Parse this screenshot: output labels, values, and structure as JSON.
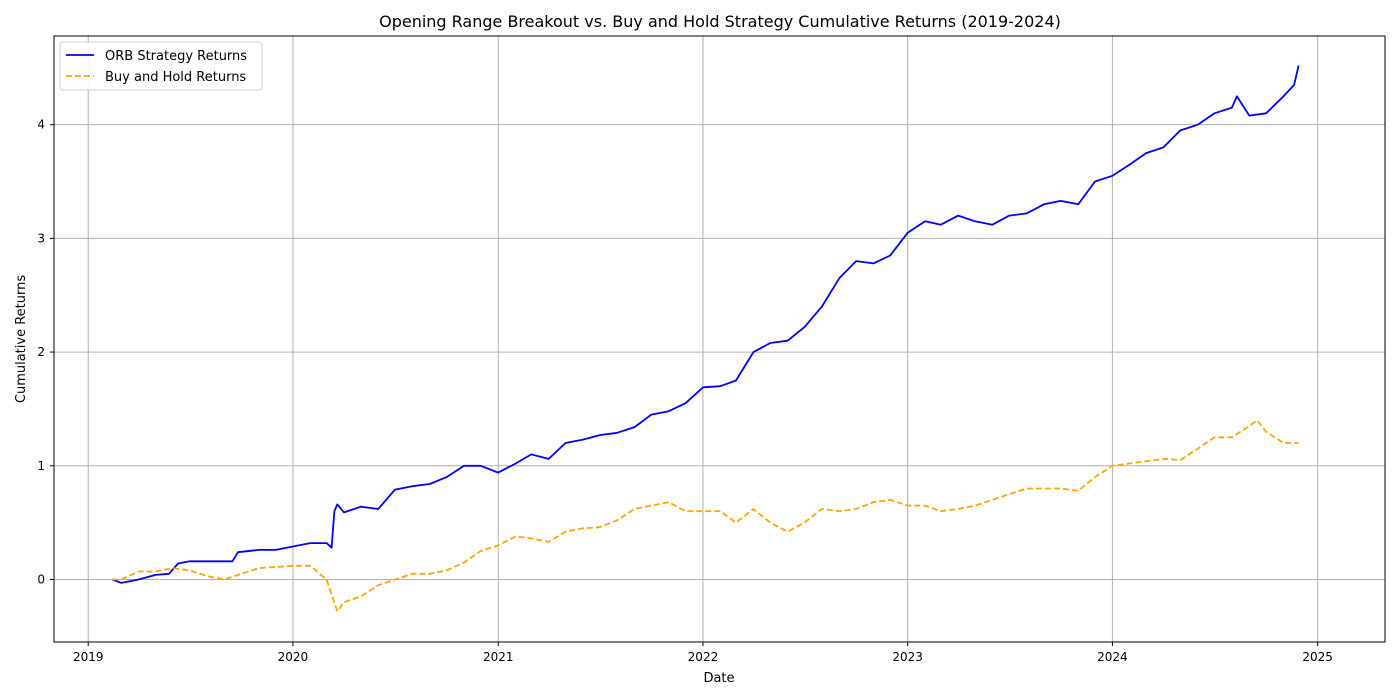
{
  "chart_data": {
    "type": "line",
    "title": "Opening Range Breakout vs. Buy and Hold Strategy Cumulative Returns (2019-2024)",
    "xlabel": "Date",
    "ylabel": "Cumulative Returns",
    "xlim": [
      "2018-11-01",
      "2025-05-01"
    ],
    "ylim": [
      -0.55,
      4.78
    ],
    "x_ticks": [
      "2019",
      "2020",
      "2021",
      "2022",
      "2023",
      "2024",
      "2025"
    ],
    "y_ticks": [
      "0",
      "1",
      "2",
      "3",
      "4"
    ],
    "grid": true,
    "legend_position": "top-left",
    "series": [
      {
        "name": "ORB Strategy Returns",
        "color": "#0000ff",
        "style": "solid",
        "points": [
          [
            "2019-02-13",
            0.0
          ],
          [
            "2019-03-01",
            -0.03
          ],
          [
            "2019-04-01",
            0.0
          ],
          [
            "2019-05-01",
            0.04
          ],
          [
            "2019-05-25",
            0.05
          ],
          [
            "2019-06-10",
            0.14
          ],
          [
            "2019-07-01",
            0.16
          ],
          [
            "2019-08-01",
            0.16
          ],
          [
            "2019-09-01",
            0.16
          ],
          [
            "2019-09-15",
            0.16
          ],
          [
            "2019-09-25",
            0.24
          ],
          [
            "2019-11-01",
            0.26
          ],
          [
            "2019-12-01",
            0.26
          ],
          [
            "2020-01-01",
            0.29
          ],
          [
            "2020-02-01",
            0.32
          ],
          [
            "2020-03-01",
            0.32
          ],
          [
            "2020-03-10",
            0.28
          ],
          [
            "2020-03-15",
            0.6
          ],
          [
            "2020-03-20",
            0.66
          ],
          [
            "2020-04-01",
            0.59
          ],
          [
            "2020-05-01",
            0.64
          ],
          [
            "2020-06-01",
            0.62
          ],
          [
            "2020-07-01",
            0.79
          ],
          [
            "2020-08-01",
            0.82
          ],
          [
            "2020-09-01",
            0.84
          ],
          [
            "2020-10-01",
            0.9
          ],
          [
            "2020-11-01",
            1.0
          ],
          [
            "2020-12-01",
            1.0
          ],
          [
            "2021-01-01",
            0.94
          ],
          [
            "2021-02-01",
            1.02
          ],
          [
            "2021-03-01",
            1.1
          ],
          [
            "2021-04-01",
            1.06
          ],
          [
            "2021-05-01",
            1.2
          ],
          [
            "2021-06-01",
            1.23
          ],
          [
            "2021-07-01",
            1.27
          ],
          [
            "2021-08-01",
            1.29
          ],
          [
            "2021-09-01",
            1.34
          ],
          [
            "2021-10-01",
            1.45
          ],
          [
            "2021-11-01",
            1.48
          ],
          [
            "2021-12-01",
            1.55
          ],
          [
            "2022-01-01",
            1.69
          ],
          [
            "2022-02-01",
            1.7
          ],
          [
            "2022-03-01",
            1.75
          ],
          [
            "2022-04-01",
            2.0
          ],
          [
            "2022-05-01",
            2.08
          ],
          [
            "2022-06-01",
            2.1
          ],
          [
            "2022-07-01",
            2.22
          ],
          [
            "2022-08-01",
            2.4
          ],
          [
            "2022-09-01",
            2.65
          ],
          [
            "2022-10-01",
            2.8
          ],
          [
            "2022-11-01",
            2.78
          ],
          [
            "2022-12-01",
            2.85
          ],
          [
            "2023-01-01",
            3.05
          ],
          [
            "2023-02-01",
            3.15
          ],
          [
            "2023-03-01",
            3.12
          ],
          [
            "2023-04-01",
            3.2
          ],
          [
            "2023-05-01",
            3.15
          ],
          [
            "2023-06-01",
            3.12
          ],
          [
            "2023-07-01",
            3.2
          ],
          [
            "2023-08-01",
            3.22
          ],
          [
            "2023-09-01",
            3.3
          ],
          [
            "2023-10-01",
            3.33
          ],
          [
            "2023-11-01",
            3.3
          ],
          [
            "2023-12-01",
            3.5
          ],
          [
            "2024-01-01",
            3.55
          ],
          [
            "2024-02-01",
            3.65
          ],
          [
            "2024-03-01",
            3.75
          ],
          [
            "2024-04-01",
            3.8
          ],
          [
            "2024-05-01",
            3.95
          ],
          [
            "2024-06-01",
            4.0
          ],
          [
            "2024-07-01",
            4.1
          ],
          [
            "2024-08-01",
            4.15
          ],
          [
            "2024-08-10",
            4.25
          ],
          [
            "2024-09-01",
            4.08
          ],
          [
            "2024-10-01",
            4.1
          ],
          [
            "2024-11-01",
            4.25
          ],
          [
            "2024-11-20",
            4.35
          ],
          [
            "2024-11-28",
            4.52
          ]
        ]
      },
      {
        "name": "Buy and Hold Returns",
        "color": "#ffa500",
        "style": "dashed",
        "points": [
          [
            "2019-02-13",
            0.0
          ],
          [
            "2019-03-01",
            0.0
          ],
          [
            "2019-04-01",
            0.07
          ],
          [
            "2019-05-01",
            0.07
          ],
          [
            "2019-06-01",
            0.1
          ],
          [
            "2019-07-01",
            0.08
          ],
          [
            "2019-08-01",
            0.03
          ],
          [
            "2019-09-01",
            0.0
          ],
          [
            "2019-10-01",
            0.05
          ],
          [
            "2019-11-01",
            0.1
          ],
          [
            "2019-12-01",
            0.11
          ],
          [
            "2020-01-01",
            0.12
          ],
          [
            "2020-02-01",
            0.12
          ],
          [
            "2020-03-01",
            0.0
          ],
          [
            "2020-03-20",
            -0.28
          ],
          [
            "2020-04-01",
            -0.2
          ],
          [
            "2020-05-01",
            -0.15
          ],
          [
            "2020-06-01",
            -0.05
          ],
          [
            "2020-07-01",
            0.0
          ],
          [
            "2020-08-01",
            0.05
          ],
          [
            "2020-09-01",
            0.05
          ],
          [
            "2020-10-01",
            0.08
          ],
          [
            "2020-11-01",
            0.15
          ],
          [
            "2020-12-01",
            0.25
          ],
          [
            "2021-01-01",
            0.3
          ],
          [
            "2021-02-01",
            0.38
          ],
          [
            "2021-03-01",
            0.36
          ],
          [
            "2021-04-01",
            0.33
          ],
          [
            "2021-05-01",
            0.42
          ],
          [
            "2021-06-01",
            0.45
          ],
          [
            "2021-07-01",
            0.46
          ],
          [
            "2021-08-01",
            0.52
          ],
          [
            "2021-09-01",
            0.62
          ],
          [
            "2021-10-01",
            0.65
          ],
          [
            "2021-11-01",
            0.68
          ],
          [
            "2021-12-01",
            0.6
          ],
          [
            "2022-01-01",
            0.6
          ],
          [
            "2022-02-01",
            0.6
          ],
          [
            "2022-03-01",
            0.5
          ],
          [
            "2022-04-01",
            0.62
          ],
          [
            "2022-05-01",
            0.5
          ],
          [
            "2022-06-01",
            0.42
          ],
          [
            "2022-07-01",
            0.5
          ],
          [
            "2022-08-01",
            0.62
          ],
          [
            "2022-09-01",
            0.6
          ],
          [
            "2022-10-01",
            0.62
          ],
          [
            "2022-11-01",
            0.68
          ],
          [
            "2022-12-01",
            0.7
          ],
          [
            "2023-01-01",
            0.65
          ],
          [
            "2023-02-01",
            0.65
          ],
          [
            "2023-03-01",
            0.6
          ],
          [
            "2023-04-01",
            0.62
          ],
          [
            "2023-05-01",
            0.65
          ],
          [
            "2023-06-01",
            0.7
          ],
          [
            "2023-07-01",
            0.75
          ],
          [
            "2023-08-01",
            0.8
          ],
          [
            "2023-09-01",
            0.8
          ],
          [
            "2023-10-01",
            0.8
          ],
          [
            "2023-11-01",
            0.78
          ],
          [
            "2023-12-01",
            0.9
          ],
          [
            "2024-01-01",
            1.0
          ],
          [
            "2024-02-01",
            1.02
          ],
          [
            "2024-03-01",
            1.04
          ],
          [
            "2024-04-01",
            1.06
          ],
          [
            "2024-05-01",
            1.05
          ],
          [
            "2024-06-01",
            1.15
          ],
          [
            "2024-07-01",
            1.25
          ],
          [
            "2024-08-01",
            1.25
          ],
          [
            "2024-09-01",
            1.35
          ],
          [
            "2024-09-15",
            1.4
          ],
          [
            "2024-10-01",
            1.3
          ],
          [
            "2024-11-01",
            1.2
          ],
          [
            "2024-11-28",
            1.2
          ]
        ]
      }
    ]
  }
}
